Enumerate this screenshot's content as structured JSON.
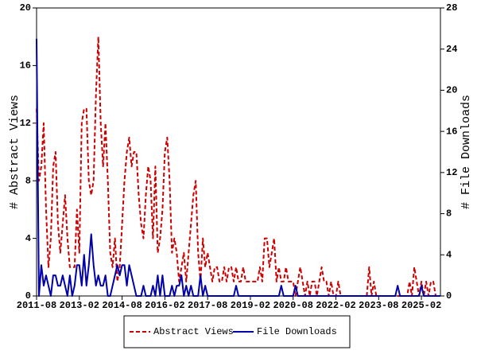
{
  "chart_data": {
    "type": "line",
    "y_label": "# Abstract Views",
    "y2_label": "# File Downloads",
    "x": [
      "2011-08",
      "2011-09",
      "2011-10",
      "2011-11",
      "2011-12",
      "2012-01",
      "2012-02",
      "2012-03",
      "2012-04",
      "2012-05",
      "2012-06",
      "2012-07",
      "2012-08",
      "2012-09",
      "2012-10",
      "2012-11",
      "2012-12",
      "2013-01",
      "2013-02",
      "2013-03",
      "2013-04",
      "2013-05",
      "2013-06",
      "2013-07",
      "2013-08",
      "2013-09",
      "2013-10",
      "2013-11",
      "2013-12",
      "2014-01",
      "2014-02",
      "2014-03",
      "2014-04",
      "2014-05",
      "2014-06",
      "2014-07",
      "2014-08",
      "2014-09",
      "2014-10",
      "2014-11",
      "2014-12",
      "2015-01",
      "2015-02",
      "2015-03",
      "2015-04",
      "2015-05",
      "2015-06",
      "2015-07",
      "2015-08",
      "2015-09",
      "2015-10",
      "2015-11",
      "2015-12",
      "2016-01",
      "2016-02",
      "2016-03",
      "2016-04",
      "2016-05",
      "2016-06",
      "2016-07",
      "2016-08",
      "2016-09",
      "2016-10",
      "2016-11",
      "2016-12",
      "2017-01",
      "2017-02",
      "2017-03",
      "2017-04",
      "2017-05",
      "2017-06",
      "2017-07",
      "2017-08",
      "2017-09",
      "2017-10",
      "2017-11",
      "2017-12",
      "2018-01",
      "2018-02",
      "2018-03",
      "2018-04",
      "2018-05",
      "2018-06",
      "2018-07",
      "2018-08",
      "2018-09",
      "2018-10",
      "2018-11",
      "2018-12",
      "2019-01",
      "2019-02",
      "2019-03",
      "2019-04",
      "2019-05",
      "2019-06",
      "2019-07",
      "2019-08",
      "2019-09",
      "2019-10",
      "2019-11",
      "2019-12",
      "2020-01",
      "2020-02",
      "2020-03",
      "2020-04",
      "2020-05",
      "2020-06",
      "2020-07",
      "2020-08",
      "2020-09",
      "2020-10",
      "2020-11",
      "2020-12",
      "2021-01",
      "2021-02",
      "2021-03",
      "2021-04",
      "2021-05",
      "2021-06",
      "2021-07",
      "2021-08",
      "2021-09",
      "2021-10",
      "2021-11",
      "2021-12",
      "2022-01",
      "2022-02",
      "2022-03",
      "2022-04",
      "2022-05",
      "2022-06",
      "2022-07",
      "2022-08",
      "2022-09",
      "2022-10",
      "2022-11",
      "2022-12",
      "2023-01",
      "2023-02",
      "2023-03",
      "2023-04",
      "2023-05",
      "2023-06",
      "2023-07",
      "2023-08",
      "2023-09",
      "2023-10",
      "2023-11",
      "2023-12",
      "2024-01",
      "2024-02",
      "2024-03",
      "2024-04",
      "2024-05",
      "2024-06",
      "2024-07",
      "2024-08",
      "2024-09",
      "2024-10",
      "2024-11",
      "2024-12",
      "2025-01",
      "2025-02",
      "2025-03",
      "2025-04",
      "2025-05",
      "2025-06",
      "2025-07",
      "2025-08",
      "2025-09",
      "2025-10"
    ],
    "xlim": [
      "2011-08",
      "2025-10"
    ],
    "xticks": [
      "2011-08",
      "2013-02",
      "2014-08",
      "2016-02",
      "2017-08",
      "2019-02",
      "2020-08",
      "2022-02",
      "2023-08",
      "2025-02"
    ],
    "ylim": [
      0,
      20
    ],
    "yticks": [
      0,
      4,
      8,
      12,
      16,
      20
    ],
    "y2lim": [
      0,
      28
    ],
    "y2ticks": [
      0,
      4,
      8,
      12,
      16,
      20,
      24,
      28
    ],
    "series": [
      {
        "name": "Abstract Views",
        "color": "#cc0000",
        "line_style": "dashed",
        "values": [
          13,
          8,
          9,
          12,
          6,
          2,
          4,
          9,
          10,
          5,
          3,
          5,
          7,
          4,
          2,
          2,
          2,
          6,
          3,
          12,
          13,
          13,
          8,
          7,
          8,
          14,
          18,
          12,
          9,
          12,
          8,
          3,
          2,
          4,
          1,
          2,
          5,
          8,
          10,
          11,
          9,
          10,
          10,
          7,
          5,
          4,
          7,
          9,
          8,
          4,
          9,
          3,
          4,
          6,
          10,
          11,
          8,
          3,
          4,
          3,
          1,
          2,
          3,
          1,
          3,
          5,
          7,
          8,
          3,
          1,
          4,
          2,
          3,
          2,
          1,
          2,
          2,
          1,
          1,
          2,
          1,
          2,
          2,
          1,
          2,
          1,
          1,
          2,
          1,
          1,
          1,
          1,
          1,
          1,
          2,
          1,
          4,
          4,
          2,
          3,
          4,
          1,
          2,
          1,
          1,
          2,
          1,
          1,
          1,
          0,
          1,
          2,
          1,
          0,
          1,
          0,
          1,
          1,
          0,
          1,
          2,
          1,
          1,
          0,
          1,
          0,
          0,
          1,
          0,
          0,
          0,
          0,
          0,
          0,
          0,
          0,
          0,
          0,
          0,
          0,
          2,
          0,
          1,
          0,
          0,
          0,
          0,
          0,
          0,
          0,
          0,
          0,
          0,
          0,
          0,
          0,
          0,
          1,
          0,
          2,
          1,
          0,
          1,
          0,
          1,
          0,
          1,
          1,
          0,
          0,
          0
        ]
      },
      {
        "name": "File Downloads",
        "color": "#0000aa",
        "line_style": "solid",
        "axis": "y2",
        "values": [
          25,
          0,
          3,
          1,
          2,
          1,
          0,
          2,
          2,
          1,
          1,
          2,
          1,
          0,
          2,
          0,
          1,
          3,
          3,
          1,
          4,
          1,
          3,
          6,
          3,
          1,
          2,
          1,
          1,
          2,
          0,
          0,
          1,
          2,
          3,
          2,
          3,
          3,
          1,
          3,
          2,
          1,
          0,
          0,
          0,
          1,
          0,
          0,
          0,
          1,
          0,
          2,
          0,
          2,
          0,
          0,
          0,
          1,
          0,
          1,
          1,
          2,
          0,
          1,
          0,
          1,
          0,
          0,
          0,
          2,
          0,
          1,
          0,
          0,
          0,
          0,
          0,
          0,
          0,
          0,
          0,
          0,
          0,
          0,
          1,
          0,
          0,
          0,
          0,
          0,
          0,
          0,
          0,
          0,
          0,
          0,
          0,
          0,
          0,
          0,
          0,
          0,
          0,
          1,
          0,
          0,
          0,
          0,
          0,
          1,
          0,
          0,
          0,
          0,
          0,
          0,
          0,
          0,
          0,
          0,
          0,
          0,
          0,
          0,
          0,
          0,
          0,
          0,
          0,
          0,
          0,
          0,
          0,
          0,
          0,
          0,
          0,
          0,
          0,
          0,
          0,
          0,
          0,
          0,
          0,
          0,
          0,
          0,
          0,
          0,
          0,
          0,
          1,
          0,
          0,
          0,
          0,
          0,
          0,
          0,
          0,
          0,
          1,
          0,
          0,
          0,
          0,
          0,
          0,
          0,
          0
        ]
      }
    ]
  }
}
